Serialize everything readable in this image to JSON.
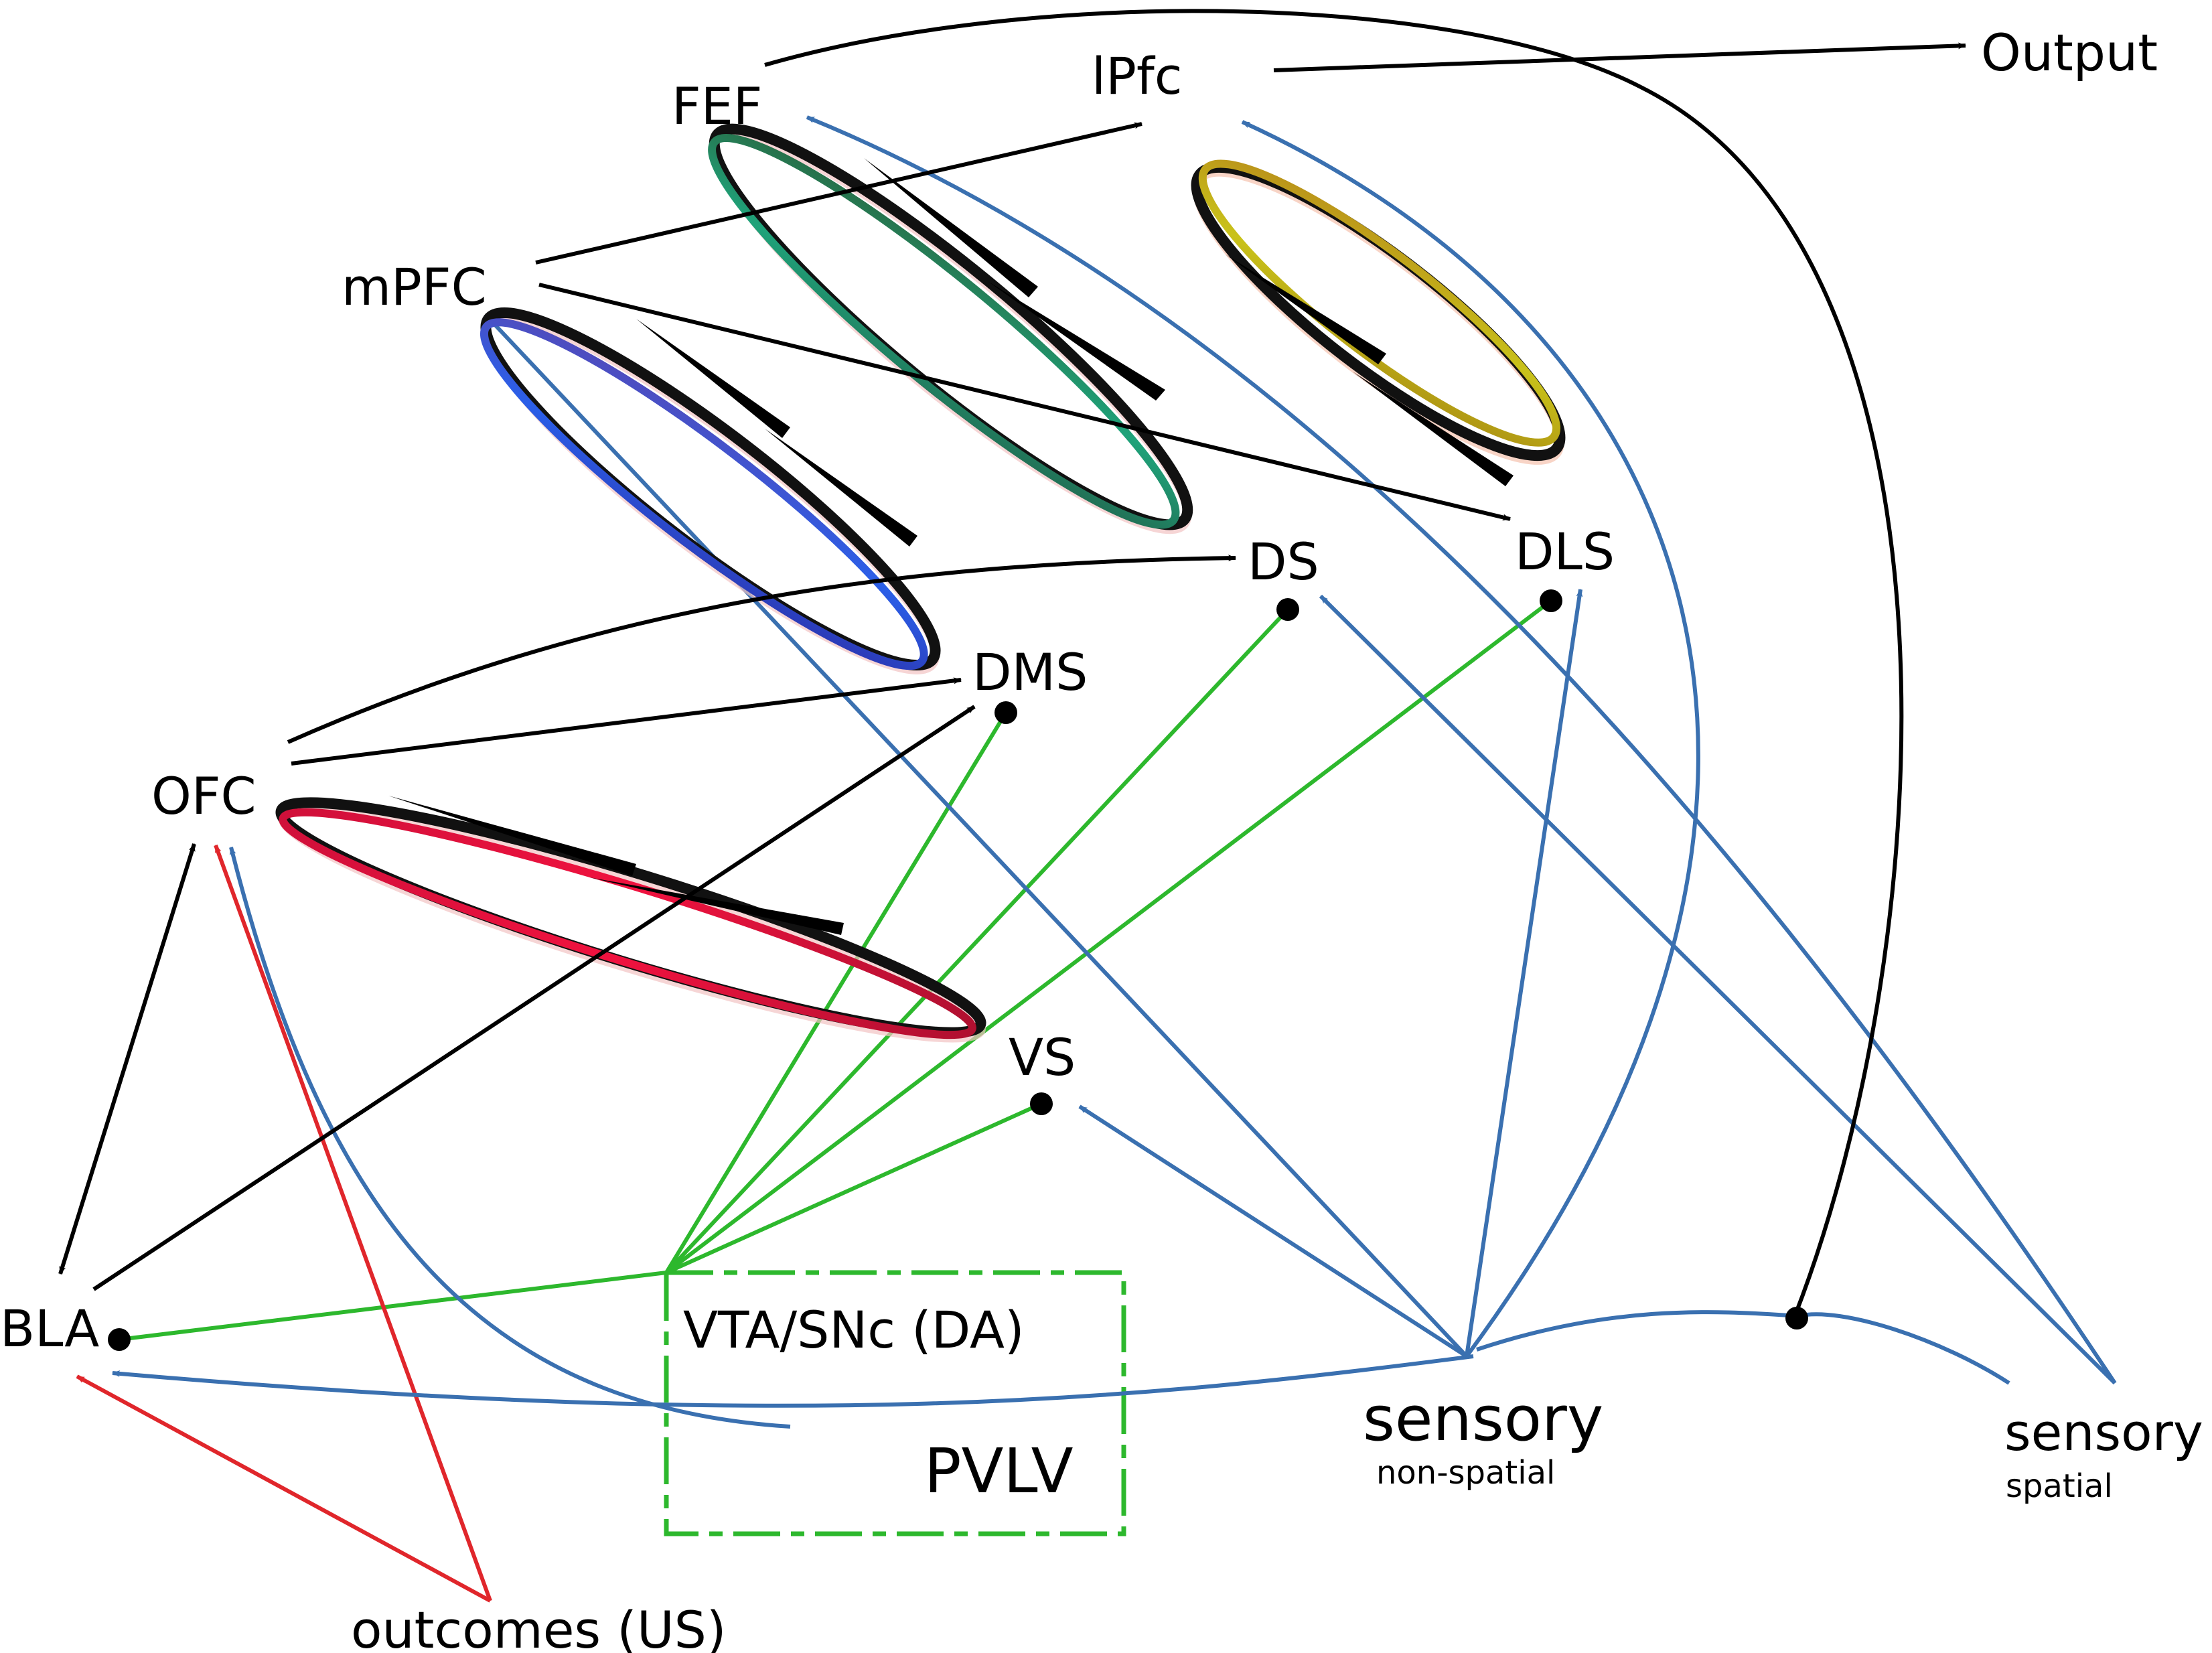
{
  "colors": {
    "black": "#000000",
    "blue": "#3a70b0",
    "green": "#2db82d",
    "red": "#e0262b",
    "loop_blue": "#2b5fe8",
    "loop_green": "#1fa37a",
    "loop_yellow": "#c9c21a",
    "loop_red": "#f0123f"
  },
  "nodes": {
    "fef": "FEF",
    "lpfc": "lPfc",
    "output": "Output",
    "mpfc": "mPFC",
    "ds": "DS",
    "dls": "DLS",
    "dms": "DMS",
    "ofc": "OFC",
    "vs": "VS",
    "bla": "BLA",
    "vta": "VTA/SNc (DA)",
    "pvlv": "PVLV",
    "sensory_ns": "sensory",
    "sensory_ns_sub": "non-spatial",
    "sensory_sp": "sensory",
    "sensory_sp_sub": "spatial",
    "outcomes": "outcomes (US)"
  }
}
